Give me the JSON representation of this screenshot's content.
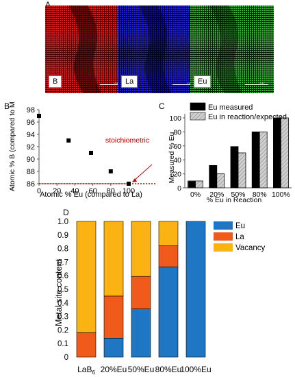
{
  "panels": {
    "a": {
      "letter": "A",
      "maps": [
        {
          "label": "B",
          "color": "#e31a1a",
          "scale_text": "2 µm"
        },
        {
          "label": "La",
          "color": "#1a1ae3",
          "scale_text": "2 µm"
        },
        {
          "label": "Eu",
          "color": "#23b823",
          "scale_text": "2 µm"
        }
      ]
    },
    "b": {
      "letter": "B"
    },
    "c": {
      "letter": "C"
    },
    "d": {
      "letter": "D"
    }
  },
  "chart_data": [
    {
      "panel": "B",
      "type": "scatter",
      "xlabel": "Atomic % Eu (compared to La)",
      "ylabel": "Atomic % B (compared to M)",
      "xlim": [
        0,
        100
      ],
      "ylim": [
        86,
        98
      ],
      "xticks": [
        "0",
        "20",
        "40",
        "60",
        "80",
        "100"
      ],
      "yticks": [
        "86",
        "88",
        "90",
        "92",
        "94",
        "96",
        "98"
      ],
      "points": [
        {
          "x": 0,
          "y": 97
        },
        {
          "x": 33,
          "y": 93
        },
        {
          "x": 58,
          "y": 91
        },
        {
          "x": 80,
          "y": 88
        },
        {
          "x": 100,
          "y": 86
        }
      ],
      "reference_line": {
        "y": 86,
        "color": "#cc0000",
        "style": "dotted"
      },
      "annotation": {
        "text": "stoichiometric",
        "color": "#cc0000"
      },
      "marker_color": "#000000"
    },
    {
      "panel": "C",
      "type": "bar",
      "categories": [
        "0%",
        "20%",
        "50%",
        "80%",
        "100%"
      ],
      "xlabel": "% Eu in Reaction",
      "ylabel": "Measured % Eu",
      "ylim": [
        0,
        100
      ],
      "yticks": [
        "0",
        "20",
        "40",
        "60",
        "80",
        "100"
      ],
      "legend_position": "top",
      "series": [
        {
          "name": "Eu measured",
          "values": [
            0,
            32,
            59,
            80,
            100
          ],
          "color": "#000000"
        },
        {
          "name": "Eu in reaction/expected",
          "values": [
            0,
            20,
            50,
            80,
            100
          ],
          "color": "#d0d0d0",
          "pattern": "hatched"
        }
      ]
    },
    {
      "panel": "D",
      "type": "bar",
      "stacked": true,
      "categories": [
        "LaB",
        "20%Eu",
        "50%Eu",
        "80%Eu",
        "100%Eu"
      ],
      "category_subscript": {
        "index": 0,
        "text": "6"
      },
      "ylabel": "Metal site content",
      "ylim": [
        0,
        1.0
      ],
      "yticks": [
        "0",
        "0.1",
        "0.2",
        "0.3",
        "0.4",
        "0.5",
        "0.6",
        "0.7",
        "0.8",
        "0.9",
        "1.0"
      ],
      "legend_position": "right",
      "series": [
        {
          "name": "Eu",
          "values": [
            0,
            0.14,
            0.355,
            0.665,
            1.0
          ],
          "color": "#1f77c4"
        },
        {
          "name": "La",
          "values": [
            0.18,
            0.31,
            0.24,
            0.155,
            0
          ],
          "color": "#f05a1a"
        },
        {
          "name": "Vacancy",
          "values": [
            0.82,
            0.55,
            0.405,
            0.18,
            0
          ],
          "color": "#fbb313"
        }
      ]
    }
  ]
}
